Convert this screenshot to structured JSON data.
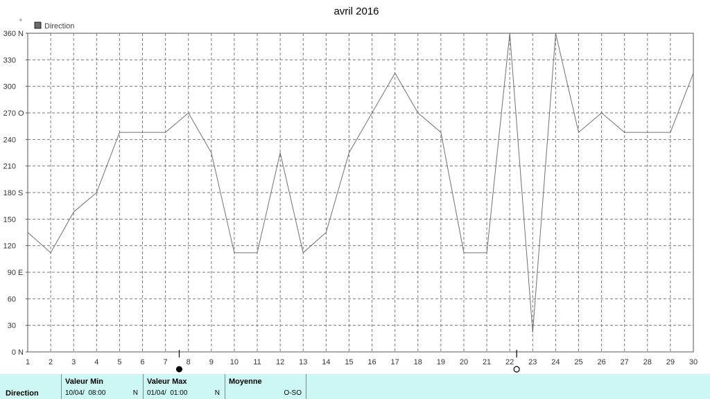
{
  "chart_data": {
    "type": "line",
    "title": "avril 2016",
    "ylabel": "°",
    "legend": {
      "entries": [
        "Direction"
      ],
      "position": "top-left"
    },
    "x": [
      1,
      2,
      3,
      4,
      5,
      6,
      7,
      8,
      9,
      10,
      11,
      12,
      13,
      14,
      15,
      16,
      17,
      18,
      19,
      20,
      21,
      22,
      23,
      24,
      25,
      26,
      27,
      28,
      29,
      30
    ],
    "x_ticks": [
      "1",
      "2",
      "3",
      "4",
      "5",
      "6",
      "7",
      "8",
      "9",
      "10",
      "11",
      "12",
      "13",
      "14",
      "15",
      "16",
      "17",
      "18",
      "19",
      "20",
      "21",
      "22",
      "23",
      "24",
      "25",
      "26",
      "27",
      "28",
      "29",
      "30"
    ],
    "xlim": [
      1,
      30
    ],
    "ylim": [
      0,
      360
    ],
    "y_ticks": [
      {
        "value": 0,
        "label": "0",
        "dir": "N"
      },
      {
        "value": 30,
        "label": "30",
        "dir": ""
      },
      {
        "value": 60,
        "label": "60",
        "dir": ""
      },
      {
        "value": 90,
        "label": "90",
        "dir": "E"
      },
      {
        "value": 120,
        "label": "120",
        "dir": ""
      },
      {
        "value": 150,
        "label": "150",
        "dir": ""
      },
      {
        "value": 180,
        "label": "180",
        "dir": "S"
      },
      {
        "value": 210,
        "label": "210",
        "dir": ""
      },
      {
        "value": 240,
        "label": "240",
        "dir": ""
      },
      {
        "value": 270,
        "label": "270",
        "dir": "O"
      },
      {
        "value": 300,
        "label": "300",
        "dir": ""
      },
      {
        "value": 330,
        "label": "330",
        "dir": ""
      },
      {
        "value": 360,
        "label": "360",
        "dir": "N"
      }
    ],
    "grid": true,
    "series": [
      {
        "name": "Direction",
        "color": "#707070",
        "points": [
          [
            1,
            135
          ],
          [
            2,
            112
          ],
          [
            3,
            158
          ],
          [
            4,
            180
          ],
          [
            5,
            248
          ],
          [
            6,
            248
          ],
          [
            7,
            248
          ],
          [
            8,
            270
          ],
          [
            9,
            225
          ],
          [
            10,
            112
          ],
          [
            11,
            112
          ],
          [
            12,
            225
          ],
          [
            13,
            112
          ],
          [
            14,
            135
          ],
          [
            15,
            225
          ],
          [
            16,
            270
          ],
          [
            17,
            315
          ],
          [
            18,
            270
          ],
          [
            19,
            248
          ],
          [
            20,
            112
          ],
          [
            21,
            112
          ],
          [
            22,
            360
          ],
          [
            23,
            22
          ],
          [
            24,
            360
          ],
          [
            25,
            248
          ],
          [
            26,
            270
          ],
          [
            27,
            248
          ],
          [
            28,
            248
          ],
          [
            29,
            248
          ],
          [
            30,
            315
          ]
        ]
      }
    ],
    "moon_markers": [
      {
        "x": 7.6,
        "phase": "new-moon"
      },
      {
        "x": 22.3,
        "phase": "full-moon"
      }
    ]
  },
  "colors": {
    "footer_bg": "#ccf7f4",
    "line": "#707070",
    "grid": "#7a7a7a"
  },
  "footer": {
    "row_label": "Direction",
    "min": {
      "header": "Valeur Min",
      "date": "10/04/  08:00",
      "dir": "N"
    },
    "max": {
      "header": "Valeur Max",
      "date": "01/04/  01:00",
      "dir": "N"
    },
    "avg": {
      "header": "Moyenne",
      "value": "O-SO"
    }
  }
}
